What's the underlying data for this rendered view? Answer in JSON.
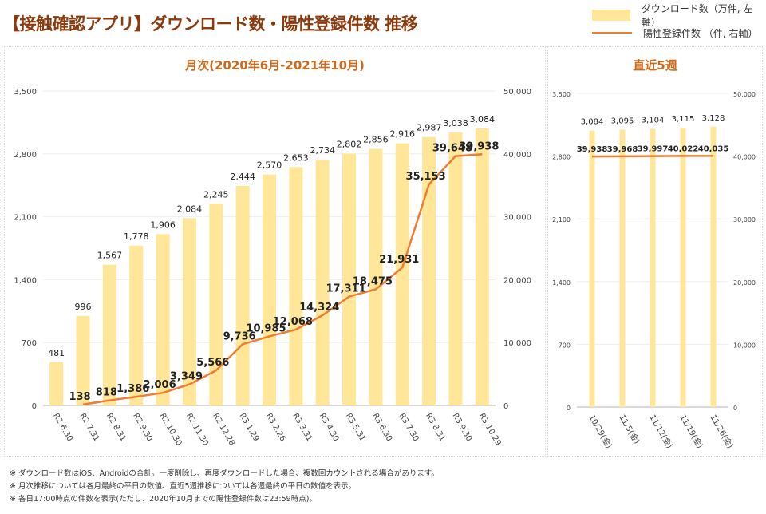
{
  "header": {
    "title": "【接触確認アプリ】ダウンロード数・陽性登録件数 推移"
  },
  "legend": {
    "items": [
      {
        "label": "ダウンロード数（万件, 左軸）",
        "type": "bar",
        "color": "#ffe699"
      },
      {
        "label": "陽性登録件数 （件, 右軸）",
        "type": "line",
        "color": "#ed7d31"
      }
    ]
  },
  "notes": [
    "※ ダウンロード数はiOS、Androidの合計。一度削除し、再度ダウンロードした場合、複数回カウントされる場合があります。",
    "※ 月次推移については各月最終の平日の数値、直近5週推移については各週最終の平日の数値を表示。",
    "※ 各日17:00時点の件数を表示(ただし、2020年10月までの陽性登録件数は23:59時点)。"
  ],
  "chart_data": [
    {
      "type": "bar+line",
      "title": "月次(2020年6月-2021年10月)",
      "categories": [
        "R2.6.30",
        "R2.7.31",
        "R2.8.31",
        "R2.9.30",
        "R2.10.30",
        "R2.11.30",
        "R2.12.28",
        "R3.1.29",
        "R3.2.26",
        "R3.3.31",
        "R3.4.30",
        "R3.5.31",
        "R3.6.30",
        "R3.7.30",
        "R3.8.31",
        "R3.9.30",
        "R3.10.29"
      ],
      "series": [
        {
          "name": "ダウンロード数（万件, 左軸）",
          "type": "bar",
          "axis": "left",
          "color": "#ffe699",
          "values": [
            481,
            996,
            1567,
            1778,
            1906,
            2084,
            2245,
            2444,
            2570,
            2653,
            2734,
            2802,
            2856,
            2916,
            2987,
            3038,
            3084
          ],
          "labels": [
            "481",
            "996",
            "1,567",
            "1,778",
            "1,906",
            "2,084",
            "2,245",
            "2,444",
            "2,570",
            "2,653",
            "2,734",
            "2,802",
            "2,856",
            "2,916",
            "2,987",
            "3,038",
            "3,084"
          ]
        },
        {
          "name": "陽性登録件数 （件, 右軸）",
          "type": "line",
          "axis": "right",
          "color": "#ed7d31",
          "values": [
            null,
            138,
            818,
            1386,
            2006,
            3349,
            5566,
            9736,
            10985,
            12068,
            14324,
            17311,
            18475,
            21931,
            35153,
            39648,
            39938
          ],
          "labels": [
            null,
            "138",
            "818",
            "1,386",
            "2,006",
            "3,349",
            "5,566",
            "9,736",
            "10,985",
            "12,068",
            "14,324",
            "17,311",
            "18,475",
            "21,931",
            "35,153",
            "39,648",
            "39,938"
          ]
        }
      ],
      "left_axis": {
        "range": [
          0,
          3500
        ],
        "ticks": [
          "0",
          "700",
          "1,400",
          "2,100",
          "2,800",
          "3,500"
        ]
      },
      "right_axis": {
        "range": [
          0,
          50000
        ],
        "ticks": [
          "0",
          "10,000",
          "20,000",
          "30,000",
          "40,000",
          "50,000"
        ]
      },
      "grid": true
    },
    {
      "type": "bar+line",
      "title": "直近5週",
      "categories": [
        "10/29(金)",
        "11/5(金)",
        "11/12(金)",
        "11/19(金)",
        "11/26(金)"
      ],
      "series": [
        {
          "name": "ダウンロード数（万件, 左軸）",
          "type": "bar",
          "axis": "left",
          "color": "#ffe699",
          "values": [
            3084,
            3095,
            3104,
            3115,
            3128
          ],
          "labels": [
            "3,084",
            "3,095",
            "3,104",
            "3,115",
            "3,128"
          ]
        },
        {
          "name": "陽性登録件数 （件, 右軸）",
          "type": "line",
          "axis": "right",
          "color": "#ed7d31",
          "values": [
            39938,
            39968,
            39997,
            40022,
            40035
          ],
          "labels": [
            "39,938",
            "39,968",
            "39,997",
            "40,022",
            "40,035"
          ]
        }
      ],
      "left_axis": {
        "range": [
          0,
          3500
        ],
        "ticks": [
          "0",
          "700",
          "1,400",
          "2,100",
          "2,800",
          "3,500"
        ]
      },
      "right_axis": {
        "range": [
          0,
          50000
        ],
        "ticks": [
          "0",
          "10,000",
          "20,000",
          "30,000",
          "40,000",
          "50,000"
        ]
      },
      "grid": true
    }
  ]
}
